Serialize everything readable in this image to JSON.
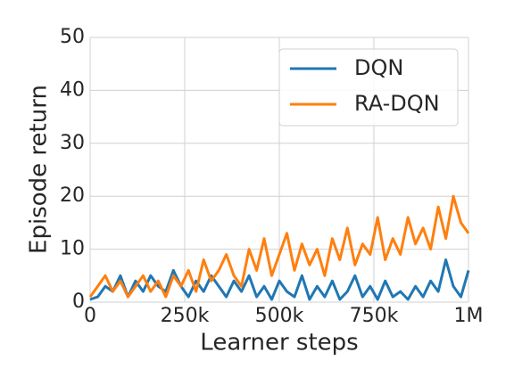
{
  "chart_data": {
    "type": "line",
    "xlabel": "Learner steps",
    "ylabel": "Episode return",
    "x": [
      0,
      20000,
      40000,
      60000,
      80000,
      100000,
      120000,
      140000,
      160000,
      180000,
      200000,
      220000,
      240000,
      260000,
      280000,
      300000,
      320000,
      340000,
      360000,
      380000,
      400000,
      420000,
      440000,
      460000,
      480000,
      500000,
      520000,
      540000,
      560000,
      580000,
      600000,
      620000,
      640000,
      660000,
      680000,
      700000,
      720000,
      740000,
      760000,
      780000,
      800000,
      820000,
      840000,
      860000,
      880000,
      900000,
      920000,
      940000,
      960000,
      980000,
      1000000
    ],
    "series": [
      {
        "name": "DQN",
        "color": "#1f77b4",
        "values": [
          0.5,
          1,
          3,
          2,
          5,
          1,
          4,
          2,
          5,
          3,
          2,
          6,
          3,
          1,
          4,
          2,
          5,
          3,
          1,
          4,
          2,
          5,
          1,
          3,
          0.5,
          4,
          2,
          1,
          5,
          0.5,
          3,
          1,
          4,
          0.5,
          2,
          5,
          1,
          3,
          0.5,
          4,
          1,
          2,
          0.5,
          3,
          1,
          4,
          2,
          8,
          3,
          1,
          6
        ]
      },
      {
        "name": "RA-DQN",
        "color": "#ff7f0e",
        "values": [
          1,
          3,
          5,
          2,
          4,
          1,
          3,
          5,
          2,
          4,
          1,
          5,
          3,
          6,
          2,
          8,
          4,
          6,
          9,
          5,
          3,
          10,
          6,
          12,
          5,
          9,
          13,
          6,
          11,
          7,
          10,
          5,
          12,
          8,
          14,
          7,
          11,
          9,
          16,
          8,
          12,
          9,
          16,
          11,
          14,
          10,
          18,
          12,
          20,
          15,
          13
        ]
      }
    ],
    "xlim": [
      0,
      1000000
    ],
    "xticks": [
      0,
      {
        "value": 250000,
        "label": "250k"
      },
      {
        "value": 500000,
        "label": "500k"
      },
      {
        "value": 750000,
        "label": "750k"
      },
      {
        "value": 1000000,
        "label": "1M"
      }
    ],
    "ylim": [
      0,
      50
    ],
    "yticks": [
      0,
      10,
      20,
      30,
      40,
      50
    ],
    "grid": true,
    "legend": "upper right"
  }
}
